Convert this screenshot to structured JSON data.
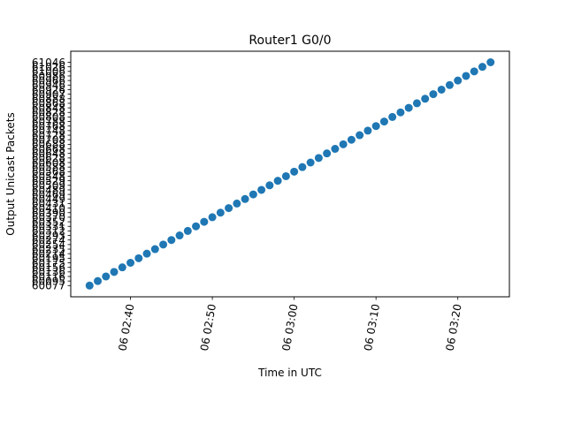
{
  "chart_data": {
    "type": "scatter",
    "title": "Router1 G0/0",
    "xlabel": "Time in UTC",
    "ylabel": "Output Unicast Packets",
    "x_tick_labels": [
      "06 02:40",
      "06 02:50",
      "06 03:00",
      "06 03:10",
      "06 03:20"
    ],
    "x_tick_minutes": [
      160,
      170,
      180,
      190,
      200
    ],
    "xlim_minutes": [
      152.7,
      206.3
    ],
    "y_axis_note": "categorical",
    "series": [
      {
        "color": "#1f77b4",
        "x_minutes": [
          155,
          156,
          157,
          158,
          159,
          160,
          161,
          162,
          163,
          164,
          165,
          166,
          167,
          168,
          169,
          170,
          171,
          172,
          173,
          174,
          175,
          176,
          177,
          178,
          179,
          180,
          181,
          182,
          183,
          184,
          185,
          186,
          187,
          188,
          189,
          190,
          191,
          192,
          193,
          194,
          195,
          196,
          197,
          198,
          199,
          200,
          201,
          202,
          203,
          204
        ],
        "y": [
          60077,
          60095,
          60116,
          60136,
          60156,
          60175,
          60195,
          60214,
          60235,
          60254,
          60274,
          60293,
          60312,
          60331,
          60352,
          60370,
          60390,
          60410,
          60431,
          60449,
          60469,
          60489,
          60509,
          60529,
          60548,
          60568,
          60588,
          60608,
          60628,
          60648,
          60668,
          60688,
          60708,
          60728,
          60748,
          60768,
          60788,
          60808,
          60828,
          60848,
          60868,
          60888,
          60907,
          60926,
          60946,
          60966,
          60986,
          61006,
          61026,
          61046
        ]
      }
    ]
  }
}
